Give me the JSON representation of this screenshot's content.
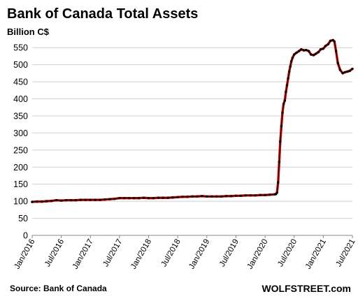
{
  "chart_data": {
    "type": "line",
    "title": "Bank of Canada Total Assets",
    "ylabel": "Billion C$",
    "xlabel": "",
    "ylim": [
      0,
      575
    ],
    "yticks": [
      0,
      50,
      100,
      150,
      200,
      250,
      300,
      350,
      400,
      450,
      500,
      550
    ],
    "x_range": [
      "2016-01",
      "2021-07"
    ],
    "x_tick_labels": [
      "Jan/2016",
      "Jul/2016",
      "Jan/2017",
      "Jul/2017",
      "Jan/2018",
      "Jul/2018",
      "Jan/2019",
      "Jul/2019",
      "Jan/2020",
      "Jul/2020",
      "Jan/2021",
      "Jul/2021"
    ],
    "grid": "horizontal",
    "series": [
      {
        "color": "#000000",
        "highlight_color": "#e00000",
        "points": [
          [
            "2016-01-01",
            98
          ],
          [
            "2016-02-01",
            99
          ],
          [
            "2016-03-01",
            99
          ],
          [
            "2016-04-01",
            100
          ],
          [
            "2016-05-01",
            101
          ],
          [
            "2016-06-01",
            103
          ],
          [
            "2016-07-01",
            102
          ],
          [
            "2016-08-01",
            103
          ],
          [
            "2016-09-01",
            103
          ],
          [
            "2016-10-01",
            103
          ],
          [
            "2016-11-01",
            104
          ],
          [
            "2016-12-01",
            104
          ],
          [
            "2017-01-01",
            104
          ],
          [
            "2017-02-01",
            104
          ],
          [
            "2017-03-01",
            104
          ],
          [
            "2017-04-01",
            105
          ],
          [
            "2017-05-01",
            106
          ],
          [
            "2017-06-01",
            107
          ],
          [
            "2017-07-01",
            109
          ],
          [
            "2017-08-01",
            109
          ],
          [
            "2017-09-01",
            109
          ],
          [
            "2017-10-01",
            109
          ],
          [
            "2017-11-01",
            109
          ],
          [
            "2017-12-01",
            110
          ],
          [
            "2018-01-01",
            109
          ],
          [
            "2018-02-01",
            109
          ],
          [
            "2018-03-01",
            110
          ],
          [
            "2018-04-01",
            110
          ],
          [
            "2018-05-01",
            110
          ],
          [
            "2018-06-01",
            111
          ],
          [
            "2018-07-01",
            112
          ],
          [
            "2018-08-01",
            113
          ],
          [
            "2018-09-01",
            113
          ],
          [
            "2018-10-01",
            114
          ],
          [
            "2018-11-01",
            114
          ],
          [
            "2018-12-01",
            115
          ],
          [
            "2019-01-01",
            114
          ],
          [
            "2019-02-01",
            114
          ],
          [
            "2019-03-01",
            114
          ],
          [
            "2019-04-01",
            114
          ],
          [
            "2019-05-01",
            115
          ],
          [
            "2019-06-01",
            115
          ],
          [
            "2019-07-01",
            116
          ],
          [
            "2019-08-01",
            116
          ],
          [
            "2019-09-01",
            117
          ],
          [
            "2019-10-01",
            117
          ],
          [
            "2019-11-01",
            117
          ],
          [
            "2019-12-01",
            118
          ],
          [
            "2020-01-01",
            118
          ],
          [
            "2020-02-01",
            119
          ],
          [
            "2020-03-01",
            120
          ],
          [
            "2020-03-08",
            121
          ],
          [
            "2020-03-15",
            125
          ],
          [
            "2020-03-22",
            155
          ],
          [
            "2020-03-29",
            215
          ],
          [
            "2020-04-05",
            275
          ],
          [
            "2020-04-12",
            320
          ],
          [
            "2020-04-19",
            360
          ],
          [
            "2020-04-26",
            385
          ],
          [
            "2020-05-03",
            395
          ],
          [
            "2020-05-10",
            420
          ],
          [
            "2020-05-17",
            440
          ],
          [
            "2020-05-24",
            460
          ],
          [
            "2020-05-31",
            480
          ],
          [
            "2020-06-07",
            495
          ],
          [
            "2020-06-14",
            510
          ],
          [
            "2020-06-21",
            520
          ],
          [
            "2020-07-01",
            530
          ],
          [
            "2020-07-15",
            535
          ],
          [
            "2020-08-01",
            540
          ],
          [
            "2020-08-15",
            545
          ],
          [
            "2020-09-01",
            542
          ],
          [
            "2020-09-15",
            543
          ],
          [
            "2020-10-01",
            540
          ],
          [
            "2020-10-15",
            530
          ],
          [
            "2020-11-01",
            528
          ],
          [
            "2020-11-15",
            532
          ],
          [
            "2020-12-01",
            537
          ],
          [
            "2020-12-15",
            545
          ],
          [
            "2021-01-01",
            547
          ],
          [
            "2021-01-15",
            555
          ],
          [
            "2021-02-01",
            560
          ],
          [
            "2021-02-15",
            570
          ],
          [
            "2021-03-01",
            572
          ],
          [
            "2021-03-10",
            568
          ],
          [
            "2021-03-20",
            540
          ],
          [
            "2021-04-01",
            505
          ],
          [
            "2021-04-15",
            485
          ],
          [
            "2021-05-01",
            475
          ],
          [
            "2021-05-15",
            478
          ],
          [
            "2021-06-01",
            480
          ],
          [
            "2021-06-15",
            482
          ],
          [
            "2021-07-01",
            488
          ]
        ]
      }
    ]
  },
  "footer": {
    "source": "Source: Bank of Canada",
    "brand": "WOLFSTREET.com"
  }
}
